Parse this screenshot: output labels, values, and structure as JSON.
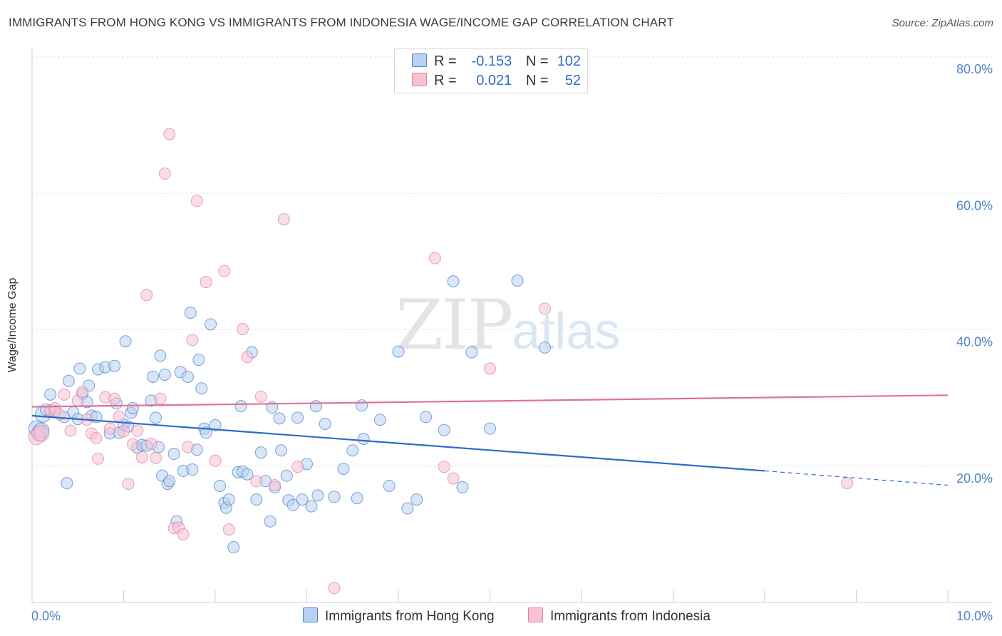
{
  "title": "IMMIGRANTS FROM HONG KONG VS IMMIGRANTS FROM INDONESIA WAGE/INCOME GAP CORRELATION CHART",
  "source": "Source: ZipAtlas.com",
  "watermark": {
    "zip": "ZIP",
    "atlas": "atlas"
  },
  "legend": [
    {
      "r_label": "R =",
      "r_value": "-0.153",
      "n_label": "N =",
      "n_value": "102",
      "color": "#4f83cc"
    },
    {
      "r_label": "R =",
      "r_value": "0.021",
      "n_label": "N =",
      "n_value": "52",
      "color": "#e87fa0"
    }
  ],
  "chart_data": {
    "type": "scatter",
    "title": "",
    "xlabel": "",
    "ylabel": "Wage/Income Gap",
    "xlim": [
      0,
      10
    ],
    "ylim": [
      0,
      80
    ],
    "x_tick_labels": [
      "0.0%",
      "10.0%"
    ],
    "y_ticks": [
      20,
      40,
      60,
      80
    ],
    "y_tick_labels": [
      "20.0%",
      "40.0%",
      "60.0%",
      "80.0%"
    ],
    "grid": true,
    "legend_position": "bottom",
    "series": [
      {
        "name": "Immigrants from Hong Kong",
        "color": "#4f83cc",
        "fill": "#b9d1f0",
        "trend": {
          "x": [
            0,
            8
          ],
          "y": [
            27.4,
            19.3
          ],
          "dashed_to_x": 10,
          "dashed_y": 17.2
        },
        "points": [
          [
            0.05,
            25.5
          ],
          [
            0.08,
            24.8
          ],
          [
            0.1,
            25.2
          ],
          [
            0.12,
            27.6
          ],
          [
            0.15,
            28.3
          ],
          [
            0.2,
            30.5
          ],
          [
            0.25,
            28.1
          ],
          [
            0.35,
            27.2
          ],
          [
            0.38,
            17.5
          ],
          [
            0.4,
            32.5
          ],
          [
            0.45,
            27.9
          ],
          [
            0.5,
            26.9
          ],
          [
            0.52,
            34.3
          ],
          [
            0.55,
            30.6
          ],
          [
            0.6,
            29.4
          ],
          [
            0.62,
            31.8
          ],
          [
            0.65,
            27.4
          ],
          [
            0.7,
            27.2
          ],
          [
            0.72,
            34.2
          ],
          [
            0.8,
            34.5
          ],
          [
            0.85,
            24.8
          ],
          [
            0.9,
            34.7
          ],
          [
            0.92,
            29.2
          ],
          [
            0.95,
            24.9
          ],
          [
            1.0,
            26.1
          ],
          [
            1.02,
            38.3
          ],
          [
            1.05,
            25.8
          ],
          [
            1.08,
            27.8
          ],
          [
            1.1,
            28.5
          ],
          [
            1.15,
            22.7
          ],
          [
            1.2,
            23.1
          ],
          [
            1.25,
            23.0
          ],
          [
            1.3,
            29.6
          ],
          [
            1.32,
            33.1
          ],
          [
            1.35,
            27.1
          ],
          [
            1.38,
            22.8
          ],
          [
            1.4,
            36.2
          ],
          [
            1.42,
            18.6
          ],
          [
            1.45,
            33.4
          ],
          [
            1.48,
            17.4
          ],
          [
            1.5,
            17.8
          ],
          [
            1.55,
            21.8
          ],
          [
            1.58,
            11.9
          ],
          [
            1.62,
            33.8
          ],
          [
            1.65,
            19.3
          ],
          [
            1.7,
            33.1
          ],
          [
            1.73,
            42.5
          ],
          [
            1.75,
            19.5
          ],
          [
            1.8,
            22.4
          ],
          [
            1.82,
            35.6
          ],
          [
            1.85,
            31.4
          ],
          [
            1.88,
            25.5
          ],
          [
            1.9,
            24.9
          ],
          [
            1.95,
            40.8
          ],
          [
            2.0,
            26.0
          ],
          [
            2.05,
            17.1
          ],
          [
            2.1,
            14.6
          ],
          [
            2.12,
            13.9
          ],
          [
            2.15,
            15.1
          ],
          [
            2.2,
            8.1
          ],
          [
            2.25,
            19.1
          ],
          [
            2.28,
            28.8
          ],
          [
            2.3,
            19.2
          ],
          [
            2.35,
            18.8
          ],
          [
            2.4,
            36.7
          ],
          [
            2.45,
            15.1
          ],
          [
            2.5,
            22.0
          ],
          [
            2.55,
            17.8
          ],
          [
            2.6,
            11.9
          ],
          [
            2.62,
            28.6
          ],
          [
            2.65,
            16.9
          ],
          [
            2.7,
            27.0
          ],
          [
            2.72,
            22.3
          ],
          [
            2.78,
            18.6
          ],
          [
            2.8,
            15.0
          ],
          [
            2.85,
            14.3
          ],
          [
            2.9,
            27.1
          ],
          [
            2.95,
            15.1
          ],
          [
            3.0,
            20.3
          ],
          [
            3.05,
            14.1
          ],
          [
            3.1,
            28.8
          ],
          [
            3.12,
            15.7
          ],
          [
            3.2,
            26.2
          ],
          [
            3.3,
            15.5
          ],
          [
            3.4,
            19.6
          ],
          [
            3.5,
            22.3
          ],
          [
            3.55,
            15.3
          ],
          [
            3.6,
            28.9
          ],
          [
            3.62,
            24.0
          ],
          [
            3.8,
            26.8
          ],
          [
            3.9,
            17.1
          ],
          [
            4.0,
            36.8
          ],
          [
            4.1,
            13.8
          ],
          [
            4.2,
            15.1
          ],
          [
            4.3,
            27.2
          ],
          [
            4.5,
            25.3
          ],
          [
            4.6,
            47.1
          ],
          [
            4.7,
            16.9
          ],
          [
            4.8,
            36.7
          ],
          [
            5.0,
            25.5
          ],
          [
            5.3,
            47.2
          ],
          [
            5.6,
            37.4
          ]
        ]
      },
      {
        "name": "Immigrants from Indonesia",
        "color": "#e87fa0",
        "fill": "#f6c3d3",
        "trend": {
          "x": [
            0,
            10
          ],
          "y": [
            28.7,
            30.4
          ]
        },
        "points": [
          [
            0.05,
            24.3
          ],
          [
            0.1,
            24.8
          ],
          [
            0.2,
            28.2
          ],
          [
            0.25,
            28.5
          ],
          [
            0.3,
            27.6
          ],
          [
            0.35,
            30.5
          ],
          [
            0.42,
            25.2
          ],
          [
            0.5,
            29.6
          ],
          [
            0.55,
            30.9
          ],
          [
            0.6,
            26.8
          ],
          [
            0.65,
            24.8
          ],
          [
            0.7,
            24.1
          ],
          [
            0.72,
            21.1
          ],
          [
            0.8,
            30.1
          ],
          [
            0.85,
            25.5
          ],
          [
            0.9,
            29.9
          ],
          [
            0.95,
            27.3
          ],
          [
            1.0,
            25.1
          ],
          [
            1.05,
            17.4
          ],
          [
            1.1,
            23.2
          ],
          [
            1.15,
            25.2
          ],
          [
            1.2,
            21.3
          ],
          [
            1.25,
            45.1
          ],
          [
            1.3,
            23.3
          ],
          [
            1.35,
            21.2
          ],
          [
            1.4,
            29.9
          ],
          [
            1.45,
            62.9
          ],
          [
            1.5,
            68.7
          ],
          [
            1.55,
            10.9
          ],
          [
            1.6,
            11.0
          ],
          [
            1.65,
            10.0
          ],
          [
            1.7,
            22.8
          ],
          [
            1.75,
            38.5
          ],
          [
            1.8,
            58.9
          ],
          [
            1.9,
            47.0
          ],
          [
            2.0,
            20.8
          ],
          [
            2.1,
            48.6
          ],
          [
            2.15,
            10.7
          ],
          [
            2.3,
            40.1
          ],
          [
            2.35,
            36.0
          ],
          [
            2.45,
            17.8
          ],
          [
            2.5,
            30.2
          ],
          [
            2.65,
            17.2
          ],
          [
            2.75,
            56.2
          ],
          [
            2.9,
            19.9
          ],
          [
            3.3,
            2.1
          ],
          [
            4.4,
            50.5
          ],
          [
            4.5,
            19.9
          ],
          [
            4.6,
            18.2
          ],
          [
            5.0,
            34.3
          ],
          [
            5.6,
            43.1
          ],
          [
            8.9,
            17.5
          ]
        ]
      }
    ]
  }
}
